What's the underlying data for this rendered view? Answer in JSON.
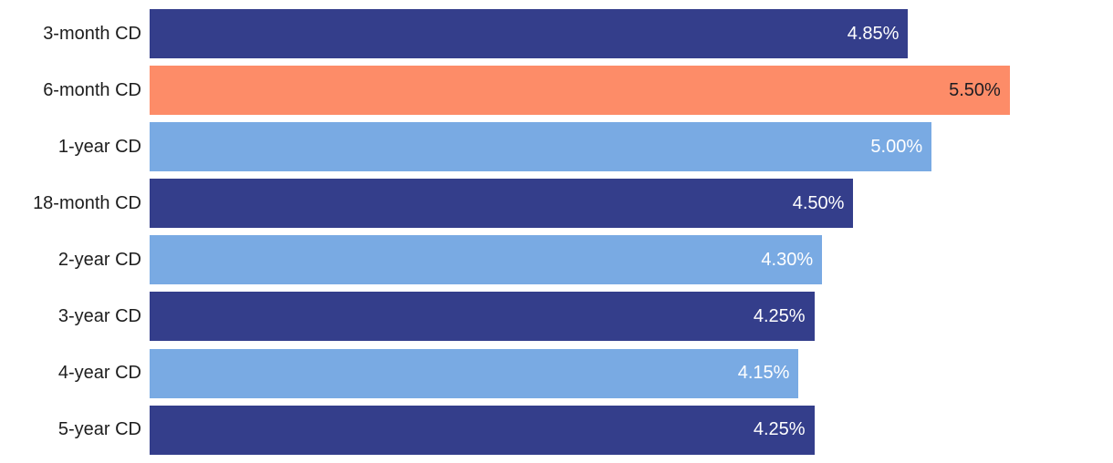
{
  "chart_data": {
    "type": "bar",
    "orientation": "horizontal",
    "title": "",
    "xlabel": "",
    "ylabel": "",
    "categories": [
      "3-month CD",
      "6-month CD",
      "1-year CD",
      "18-month CD",
      "2-year CD",
      "3-year CD",
      "4-year CD",
      "5-year CD"
    ],
    "values": [
      4.85,
      5.5,
      5.0,
      4.5,
      4.3,
      4.25,
      4.15,
      4.25
    ],
    "value_labels": [
      "4.85%",
      "5.50%",
      "5.00%",
      "4.50%",
      "4.30%",
      "4.25%",
      "4.15%",
      "4.25%"
    ],
    "bar_colors": [
      "#343e8b",
      "#fd8c68",
      "#79aae3",
      "#343e8b",
      "#79aae3",
      "#343e8b",
      "#79aae3",
      "#343e8b"
    ],
    "value_label_colors": [
      "#ffffff",
      "#1c1c22",
      "#ffffff",
      "#ffffff",
      "#ffffff",
      "#ffffff",
      "#ffffff",
      "#ffffff"
    ],
    "xlim": [
      0,
      6.16
    ],
    "grid": false,
    "legend": false,
    "axis_ticks_visible": false,
    "colors": {
      "navy": "#343e8b",
      "light_blue": "#79aae3",
      "highlight_orange": "#fd8c68",
      "category_label_text": "#1d1d1d",
      "background": "#ffffff"
    }
  }
}
